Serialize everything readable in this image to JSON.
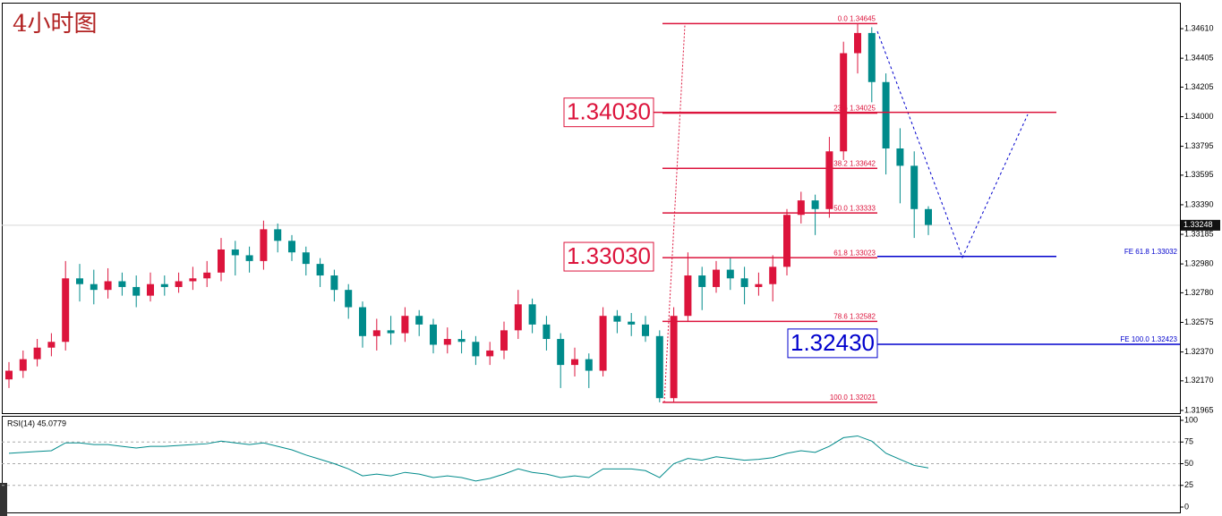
{
  "chart_data": {
    "type": "candlestick",
    "title": "4小时图",
    "ylim": [
      1.31946,
      1.3479
    ],
    "yticks": [
      {
        "value": 1.3461,
        "label": "1.34610"
      },
      {
        "value": 1.34405,
        "label": "1.34405"
      },
      {
        "value": 1.34205,
        "label": "1.34205"
      },
      {
        "value": 1.34,
        "label": "1.34000"
      },
      {
        "value": 1.33795,
        "label": "1.33795"
      },
      {
        "value": 1.33595,
        "label": "1.33595"
      },
      {
        "value": 1.3339,
        "label": "1.33390"
      },
      {
        "value": 1.33185,
        "label": "1.33185"
      },
      {
        "value": 1.3298,
        "label": "1.32980"
      },
      {
        "value": 1.3278,
        "label": "1.32780"
      },
      {
        "value": 1.32575,
        "label": "1.32575"
      },
      {
        "value": 1.3237,
        "label": "1.32370"
      },
      {
        "value": 1.3217,
        "label": "1.32170"
      },
      {
        "value": 1.31965,
        "label": "1.31965"
      }
    ],
    "last_price": 1.33248,
    "up_color": "#dc143c",
    "down_color": "#008b8b",
    "open": [
      1.3218,
      1.3224,
      1.3232,
      1.324,
      1.3244,
      1.3288,
      1.3284,
      1.328,
      1.3286,
      1.3282,
      1.3276,
      1.3284,
      1.3282,
      1.3286,
      1.3288,
      1.3292,
      1.3308,
      1.3304,
      1.33,
      1.3322,
      1.3314,
      1.3306,
      1.3298,
      1.329,
      1.328,
      1.3268,
      1.3248,
      1.3252,
      1.325,
      1.3262,
      1.3256,
      1.3242,
      1.3246,
      1.3244,
      1.3234,
      1.3238,
      1.3252,
      1.327,
      1.3256,
      1.3246,
      1.3228,
      1.3232,
      1.3224,
      1.3262,
      1.3258,
      1.3256,
      1.3248,
      1.3205,
      1.3262,
      1.329,
      1.3282,
      1.3294,
      1.3288,
      1.3282,
      1.3284,
      1.3296,
      1.3332,
      1.3342,
      1.3336,
      1.3376,
      1.3444,
      1.3458,
      1.3424,
      1.3378,
      1.3366,
      1.3336
    ],
    "high": [
      1.323,
      1.3238,
      1.3246,
      1.325,
      1.33,
      1.3298,
      1.3294,
      1.3295,
      1.3292,
      1.329,
      1.3292,
      1.329,
      1.3292,
      1.3296,
      1.33,
      1.3316,
      1.3314,
      1.331,
      1.3328,
      1.3326,
      1.3318,
      1.331,
      1.3302,
      1.3294,
      1.3284,
      1.3272,
      1.326,
      1.3262,
      1.3268,
      1.3266,
      1.326,
      1.3254,
      1.3252,
      1.3248,
      1.3244,
      1.3258,
      1.328,
      1.3274,
      1.3262,
      1.325,
      1.324,
      1.3236,
      1.3268,
      1.3266,
      1.3264,
      1.3262,
      1.3252,
      1.3268,
      1.3306,
      1.3296,
      1.33,
      1.3302,
      1.3296,
      1.3292,
      1.3304,
      1.3336,
      1.3348,
      1.3346,
      1.3386,
      1.3452,
      1.34645,
      1.3462,
      1.343,
      1.3392,
      1.3376,
      1.3338
    ],
    "low": [
      1.3212,
      1.3219,
      1.3227,
      1.3234,
      1.3238,
      1.3272,
      1.327,
      1.3274,
      1.3276,
      1.3268,
      1.3272,
      1.3276,
      1.3278,
      1.328,
      1.3282,
      1.3286,
      1.329,
      1.3292,
      1.3294,
      1.3306,
      1.33,
      1.329,
      1.3282,
      1.3272,
      1.326,
      1.324,
      1.3238,
      1.3242,
      1.3244,
      1.3248,
      1.3236,
      1.3236,
      1.3236,
      1.3228,
      1.3228,
      1.3232,
      1.3246,
      1.325,
      1.3238,
      1.3212,
      1.322,
      1.3212,
      1.322,
      1.325,
      1.3248,
      1.3244,
      1.32021,
      1.3202,
      1.3258,
      1.3266,
      1.3278,
      1.328,
      1.327,
      1.3276,
      1.3272,
      1.329,
      1.3326,
      1.3318,
      1.333,
      1.337,
      1.343,
      1.341,
      1.336,
      1.334,
      1.3316,
      1.3318
    ],
    "close": [
      1.3224,
      1.3232,
      1.324,
      1.3244,
      1.3288,
      1.3284,
      1.328,
      1.3286,
      1.3282,
      1.3276,
      1.3284,
      1.3282,
      1.3286,
      1.3288,
      1.3292,
      1.3308,
      1.3304,
      1.33,
      1.3322,
      1.3314,
      1.3306,
      1.3298,
      1.329,
      1.328,
      1.3268,
      1.3248,
      1.3252,
      1.325,
      1.3262,
      1.3256,
      1.3242,
      1.3246,
      1.3244,
      1.3234,
      1.3238,
      1.3252,
      1.327,
      1.3256,
      1.3246,
      1.3228,
      1.3232,
      1.3224,
      1.3262,
      1.3258,
      1.3256,
      1.3248,
      1.3205,
      1.3262,
      1.329,
      1.3282,
      1.3294,
      1.3288,
      1.3282,
      1.3284,
      1.3296,
      1.3332,
      1.3342,
      1.3336,
      1.3376,
      1.3444,
      1.3458,
      1.3424,
      1.3378,
      1.3366,
      1.3336,
      1.3325
    ],
    "fib_levels": [
      {
        "label": "0.0  1.34645",
        "price": 1.34645
      },
      {
        "label": "23.6  1.34025",
        "price": 1.34025
      },
      {
        "label": "38.2  1.33642",
        "price": 1.33642
      },
      {
        "label": "50.0  1.33333",
        "price": 1.33333
      },
      {
        "label": "61.8  1.33023",
        "price": 1.33023
      },
      {
        "label": "78.6  1.32582",
        "price": 1.32582
      },
      {
        "label": "100.0  1.32021",
        "price": 1.32021
      }
    ],
    "fe_levels": [
      {
        "label": "FE 61.8  1.33032",
        "price": 1.33032
      },
      {
        "label": "FE 100.0  1.32423",
        "price": 1.32423
      }
    ],
    "annotations": [
      {
        "text": "1.34030",
        "value": 1.3403,
        "color": "#dc143c"
      },
      {
        "text": "1.33030",
        "value": 1.3303,
        "color": "#dc143c"
      },
      {
        "text": "1.32430",
        "value": 1.3243,
        "color": "#0000cd"
      }
    ],
    "rsi": {
      "title": "RSI(14) 45.0779",
      "ylim": [
        0,
        100
      ],
      "yticks": [
        100,
        75,
        50,
        25,
        0
      ],
      "levels": [
        75,
        50,
        25
      ],
      "color": "#008b8b",
      "values": [
        62,
        63,
        64,
        65,
        74,
        74,
        72,
        72,
        70,
        68,
        70,
        70,
        71,
        72,
        73,
        76,
        74,
        72,
        74,
        70,
        66,
        60,
        55,
        50,
        44,
        36,
        38,
        36,
        40,
        38,
        34,
        36,
        34,
        30,
        33,
        38,
        44,
        40,
        38,
        34,
        36,
        34,
        44,
        44,
        44,
        42,
        34,
        50,
        56,
        54,
        58,
        56,
        54,
        55,
        57,
        62,
        65,
        63,
        70,
        80,
        82,
        76,
        62,
        55,
        48,
        45.0779
      ]
    }
  }
}
